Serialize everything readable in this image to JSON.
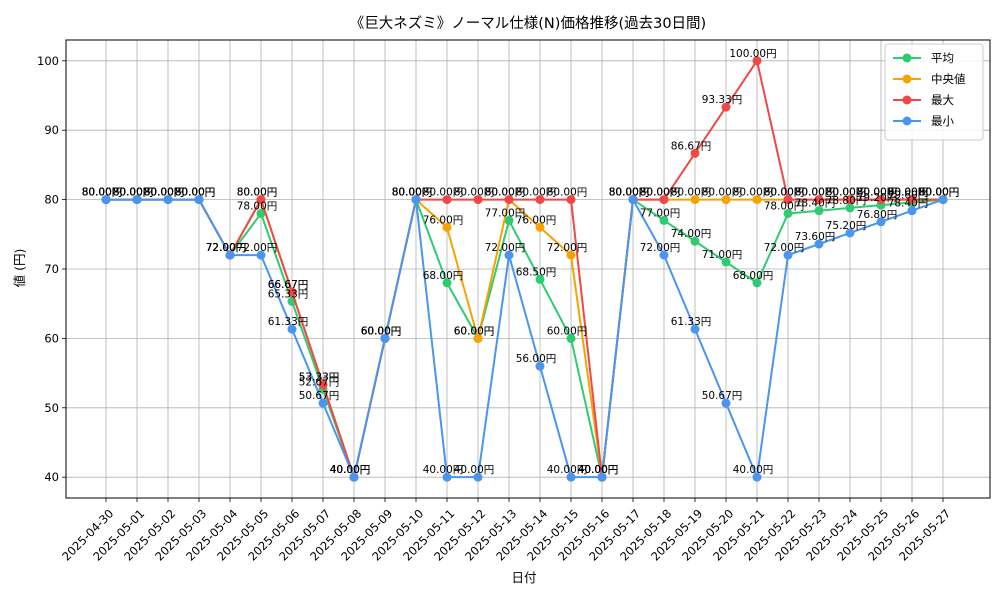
{
  "chart_data": {
    "type": "line",
    "title": "《巨大ネズミ》ノーマル仕様(N)価格推移(過去30日間)",
    "xlabel": "日付",
    "ylabel": "値 (円)",
    "ylim": [
      37,
      103
    ],
    "yticks": [
      40,
      50,
      60,
      70,
      80,
      90,
      100
    ],
    "grid": true,
    "legend_position": "top-right",
    "value_suffix": "円",
    "categories": [
      "2025-04-30",
      "2025-05-01",
      "2025-05-02",
      "2025-05-03",
      "2025-05-04",
      "2025-05-05",
      "2025-05-06",
      "2025-05-07",
      "2025-05-08",
      "2025-05-09",
      "2025-05-10",
      "2025-05-11",
      "2025-05-12",
      "2025-05-13",
      "2025-05-14",
      "2025-05-15",
      "2025-05-16",
      "2025-05-17",
      "2025-05-18",
      "2025-05-19",
      "2025-05-20",
      "2025-05-21",
      "2025-05-22",
      "2025-05-23",
      "2025-05-24",
      "2025-05-25",
      "2025-05-26",
      "2025-05-27"
    ],
    "series": [
      {
        "name": "平均",
        "color": "#2ecc71",
        "values": [
          80,
          80,
          80,
          80,
          72,
          78,
          65.33,
          52.67,
          40,
          60,
          80,
          68,
          60,
          77,
          68.5,
          60,
          40,
          80,
          77,
          74,
          71,
          68,
          78,
          78.4,
          78.8,
          79.2,
          79.6,
          80
        ]
      },
      {
        "name": "中央値",
        "color": "#f5a300",
        "values": [
          80,
          80,
          80,
          80,
          72,
          80,
          66.67,
          53.33,
          40,
          60,
          80,
          76,
          60,
          80,
          76,
          72,
          40,
          80,
          80,
          80,
          80,
          80,
          80,
          80,
          80,
          80,
          80,
          80
        ]
      },
      {
        "name": "最大",
        "color": "#f04747",
        "values": [
          80,
          80,
          80,
          80,
          72,
          80,
          66.67,
          53.33,
          40,
          60,
          80,
          80,
          80,
          80,
          80,
          80,
          40,
          80,
          80,
          86.67,
          93.33,
          100,
          80,
          80,
          80,
          80,
          80,
          80
        ]
      },
      {
        "name": "最小",
        "color": "#4a95f0",
        "values": [
          80,
          80,
          80,
          80,
          72,
          72,
          61.33,
          50.67,
          40,
          60,
          80,
          40,
          40,
          72,
          56,
          40,
          40,
          80,
          72,
          61.33,
          50.67,
          40,
          72,
          73.6,
          75.2,
          76.8,
          78.4,
          80
        ]
      }
    ]
  }
}
